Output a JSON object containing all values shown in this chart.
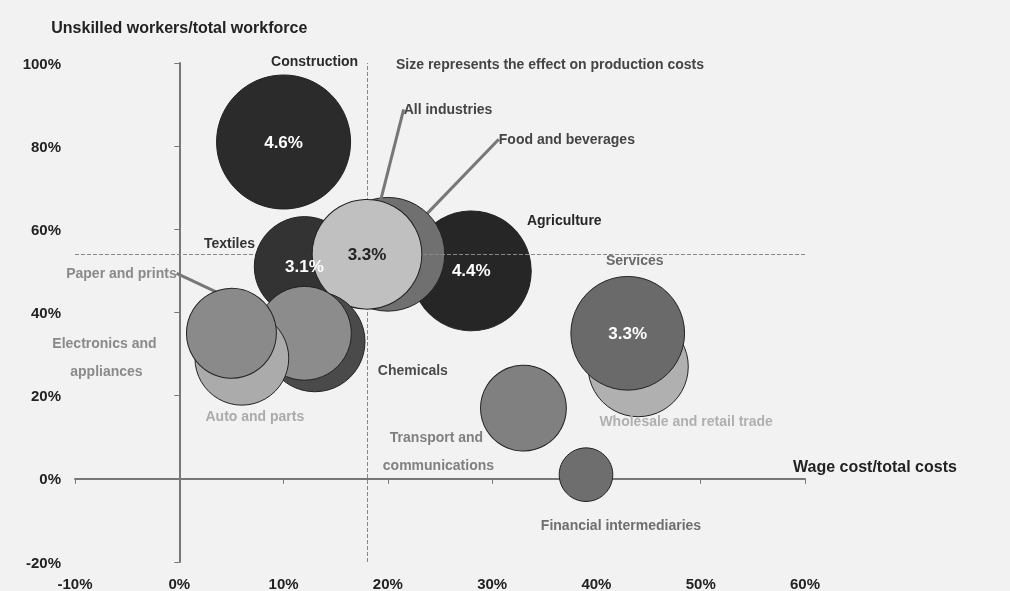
{
  "chart_data": {
    "type": "bubble",
    "xlabel": "Wage cost/total costs",
    "ylabel": "Unskilled workers/total workforce",
    "xlim": [
      -10,
      60
    ],
    "ylim": [
      -20,
      100
    ],
    "xticks": [
      {
        "value": -10,
        "label": "-10%"
      },
      {
        "value": 0,
        "label": "0%"
      },
      {
        "value": 10,
        "label": "10%"
      },
      {
        "value": 20,
        "label": "20%"
      },
      {
        "value": 30,
        "label": "30%"
      },
      {
        "value": 40,
        "label": "40%"
      },
      {
        "value": 50,
        "label": "50%"
      },
      {
        "value": 60,
        "label": "60%"
      }
    ],
    "yticks": [
      {
        "value": -20,
        "label": "-20%"
      },
      {
        "value": 0,
        "label": "0%"
      },
      {
        "value": 20,
        "label": "20%"
      },
      {
        "value": 40,
        "label": "40%"
      },
      {
        "value": 60,
        "label": "60%"
      },
      {
        "value": 80,
        "label": "80%"
      },
      {
        "value": 100,
        "label": "100%"
      }
    ],
    "series": [
      {
        "name": "Construction",
        "color": "#2b2b2b",
        "x": [
          10
        ],
        "values": [
          81
        ],
        "sizes": [
          1
        ]
      },
      {
        "name": "Agriculture",
        "color": "#262626",
        "x": [
          28
        ],
        "values": [
          50
        ],
        "sizes": [
          0.8
        ]
      },
      {
        "name": "Food and beverages",
        "color": "#707070",
        "x": [
          20
        ],
        "values": [
          54
        ],
        "sizes": [
          0.72
        ]
      },
      {
        "name": "Textiles",
        "color": "#333333",
        "x": [
          12
        ],
        "values": [
          51
        ],
        "sizes": [
          0.56
        ]
      },
      {
        "name": "All industries",
        "color": "#c0c0c0",
        "x": [
          18
        ],
        "values": [
          54
        ],
        "sizes": [
          0.67
        ]
      },
      {
        "name": "Chemicals",
        "color": "#4a4a4a",
        "x": [
          13
        ],
        "values": [
          33
        ],
        "sizes": [
          0.56
        ]
      },
      {
        "name": "Paper and prints",
        "color": "#8c8c8c",
        "x": [
          12
        ],
        "values": [
          35
        ],
        "sizes": [
          0.49
        ]
      },
      {
        "name": "Auto and parts",
        "color": "#ababab",
        "x": [
          6
        ],
        "values": [
          29
        ],
        "sizes": [
          0.49
        ]
      },
      {
        "name": "Electronics and appliances",
        "color": "#8a8a8a",
        "x": [
          5
        ],
        "values": [
          35
        ],
        "sizes": [
          0.45
        ]
      },
      {
        "name": "Wholesale and retail trade",
        "color": "#b0b0b0",
        "x": [
          44
        ],
        "values": [
          27
        ],
        "sizes": [
          0.56
        ]
      },
      {
        "name": "Services",
        "color": "#6a6a6a",
        "x": [
          43
        ],
        "values": [
          35
        ],
        "sizes": [
          0.72
        ]
      },
      {
        "name": "Transport and communications",
        "color": "#808080",
        "x": [
          33
        ],
        "values": [
          17
        ],
        "sizes": [
          0.41
        ]
      },
      {
        "name": "Financial intermediaries",
        "color": "#6e6e6e",
        "x": [
          39
        ],
        "values": [
          1
        ],
        "sizes": [
          0.16
        ]
      }
    ],
    "ref_lines": [
      {
        "axis": "x",
        "value": 18,
        "color": "#888888",
        "line_style": "dashed"
      },
      {
        "axis": "y",
        "value": 54,
        "color": "#888888",
        "line_style": "dashed"
      }
    ],
    "annotations": [
      "Size represents the effect on production costs",
      {
        "text": "4.6%",
        "x": 10,
        "y": 81
      },
      {
        "text": "3.1%",
        "x": 12,
        "y": 51
      },
      {
        "text": "3.3%",
        "x": 18,
        "y": 54
      },
      {
        "text": "4.4%",
        "x": 28,
        "y": 50
      },
      {
        "text": "3.3%",
        "x": 43,
        "y": 35
      }
    ]
  }
}
